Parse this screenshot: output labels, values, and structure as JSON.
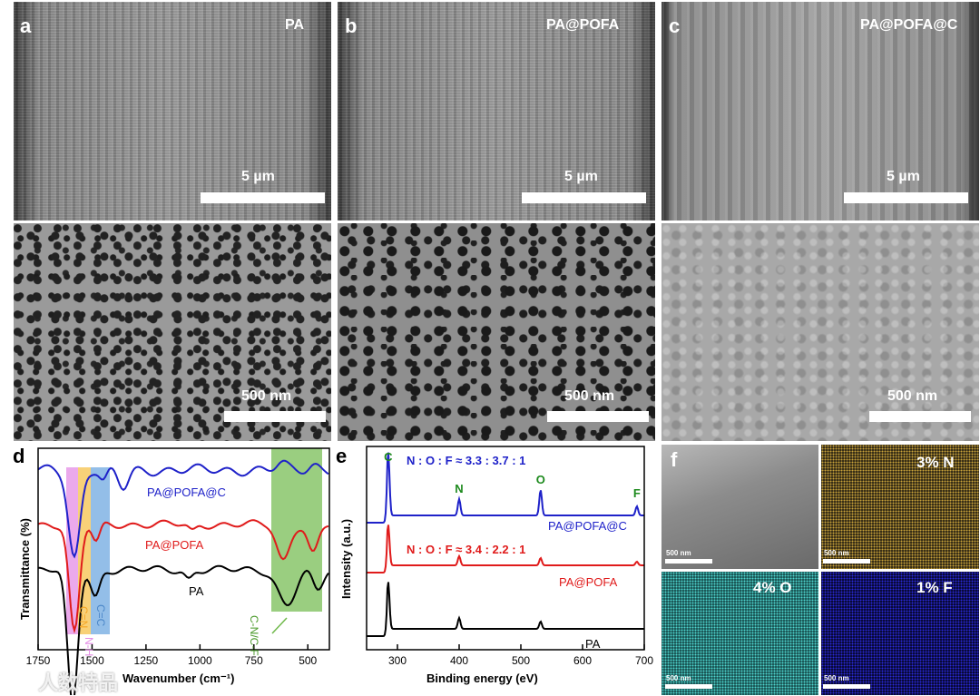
{
  "panels": {
    "a": {
      "label": "a",
      "title": "PA",
      "scale_top": "5 µm",
      "scale_bottom": "500 nm"
    },
    "b": {
      "label": "b",
      "title": "PA@POFA",
      "scale_top": "5 µm",
      "scale_bottom": "500 nm"
    },
    "c": {
      "label": "c",
      "title": "PA@POFA@C",
      "scale_top": "5 µm",
      "scale_bottom": "500 nm"
    },
    "f": {
      "label": "f",
      "maps": [
        "3% N",
        "4% O",
        "1% F"
      ],
      "scale": "500 nm"
    }
  },
  "chart_data": [
    {
      "type": "line",
      "panel": "d",
      "xlabel": "Wavenumber (cm⁻¹)",
      "ylabel": "Transmittance (%)",
      "xlim": [
        1750,
        400
      ],
      "xticks": [
        1750,
        1500,
        1250,
        1000,
        750,
        500
      ],
      "series": [
        {
          "name": "PA@POFA@C",
          "color": "#1f22c9"
        },
        {
          "name": "PA@POFA",
          "color": "#e01b1b"
        },
        {
          "name": "PA",
          "color": "#000000"
        }
      ],
      "bands": [
        {
          "label": "N-H",
          "color": "#e48ce6"
        },
        {
          "label": "C=N",
          "color": "#f5c24b"
        },
        {
          "label": "C=C",
          "color": "#6fa8e0"
        },
        {
          "label": "C-N/C-F",
          "color": "#6fb94a"
        }
      ]
    },
    {
      "type": "line",
      "panel": "e",
      "xlabel": "Binding energy (eV)",
      "ylabel": "Intensity (a.u.)",
      "xlim": [
        250,
        700
      ],
      "xticks": [
        300,
        400,
        500,
        600,
        700
      ],
      "peaks": [
        {
          "label": "C",
          "x": 285,
          "color": "#1d8a1d"
        },
        {
          "label": "N",
          "x": 400,
          "color": "#1d8a1d"
        },
        {
          "label": "O",
          "x": 532,
          "color": "#1d8a1d"
        },
        {
          "label": "F",
          "x": 688,
          "color": "#1d8a1d"
        }
      ],
      "ratio_pofac": "N : O : F ≈ 3.3 : 3.7 : 1",
      "ratio_pofa": "N : O : F ≈ 3.4 : 2.2 : 1",
      "series": [
        {
          "name": "PA@POFA@C",
          "color": "#1f22c9"
        },
        {
          "name": "PA@POFA",
          "color": "#e01b1b"
        },
        {
          "name": "PA",
          "color": "#000000"
        }
      ]
    }
  ],
  "labels": {
    "d": "d",
    "e": "e"
  },
  "watermark": "人数特品"
}
